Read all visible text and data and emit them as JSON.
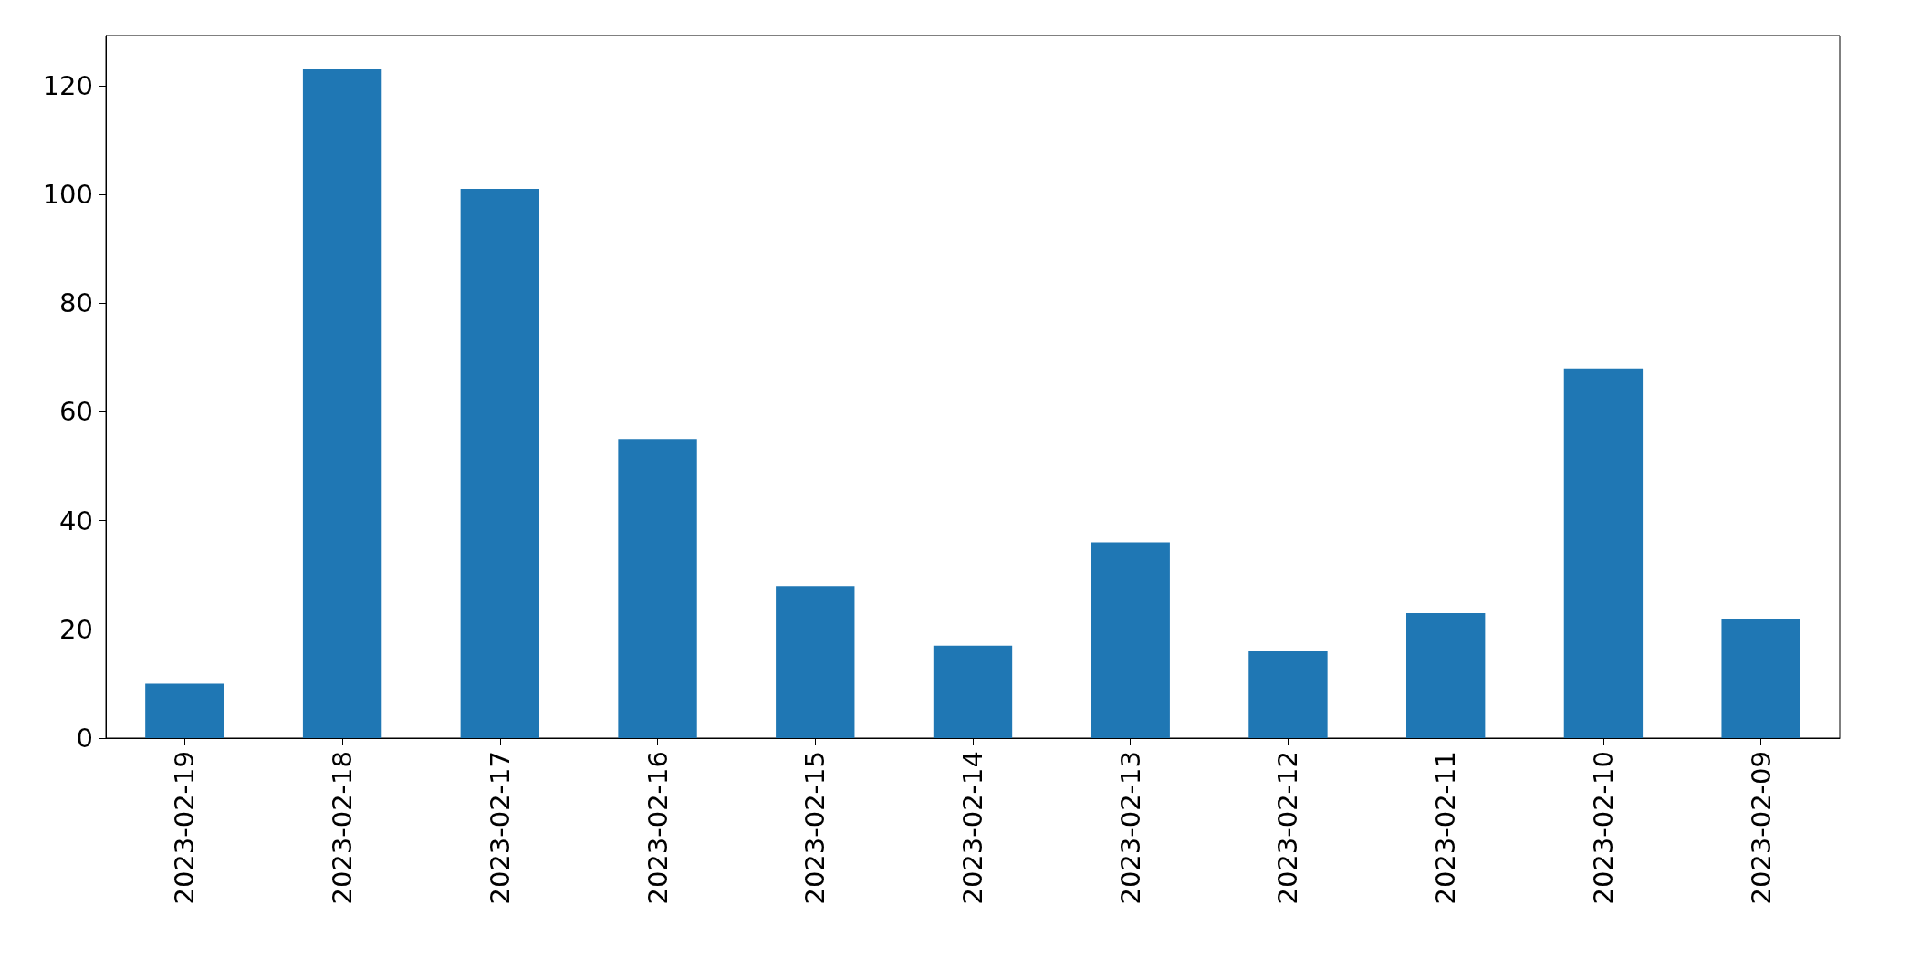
{
  "chart_data": {
    "type": "bar",
    "categories": [
      "2023-02-19",
      "2023-02-18",
      "2023-02-17",
      "2023-02-16",
      "2023-02-15",
      "2023-02-14",
      "2023-02-13",
      "2023-02-12",
      "2023-02-11",
      "2023-02-10",
      "2023-02-09"
    ],
    "values": [
      10,
      123,
      101,
      55,
      28,
      17,
      36,
      16,
      23,
      68,
      22
    ],
    "color": "#1f77b4",
    "ylim": [
      0,
      129.2
    ],
    "yticks": [
      0,
      20,
      40,
      60,
      80,
      100,
      120
    ]
  }
}
